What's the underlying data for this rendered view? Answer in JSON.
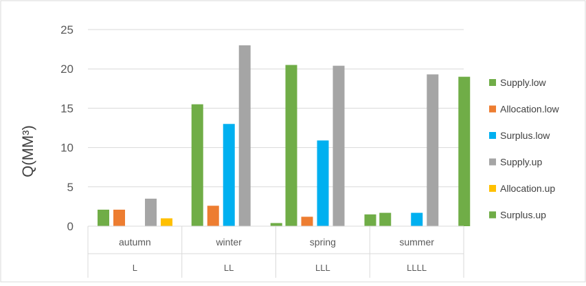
{
  "chart_data": {
    "type": "bar",
    "categories": [
      "autumn",
      "winter",
      "spring",
      "summer"
    ],
    "category_groups": [
      "L",
      "LL",
      "LLL",
      "LLLL"
    ],
    "ylabel": "Q(MM³)",
    "ylim": [
      0,
      25
    ],
    "yticks": [
      0,
      5,
      10,
      15,
      20,
      25
    ],
    "grid": true,
    "legend_position": "right",
    "series": [
      {
        "name": "Supply.low",
        "color": "#70AD47",
        "values": [
          2.1,
          15.5,
          20.5,
          1.7
        ]
      },
      {
        "name": "Allocation.low",
        "color": "#ED7D31",
        "values": [
          2.1,
          2.6,
          1.2,
          0
        ]
      },
      {
        "name": "Surplus.low",
        "color": "#00B0F0",
        "values": [
          0,
          13.0,
          10.9,
          1.7
        ]
      },
      {
        "name": "Supply.up",
        "color": "#A5A5A5",
        "values": [
          3.5,
          23.0,
          20.4,
          19.3
        ]
      },
      {
        "name": "Allocation.up",
        "color": "#FFC000",
        "values": [
          1.0,
          0,
          0,
          0
        ]
      },
      {
        "name": "Surplus.up",
        "color": "#70AD47",
        "values": [
          0,
          0.4,
          1.5,
          19.0
        ]
      }
    ]
  }
}
